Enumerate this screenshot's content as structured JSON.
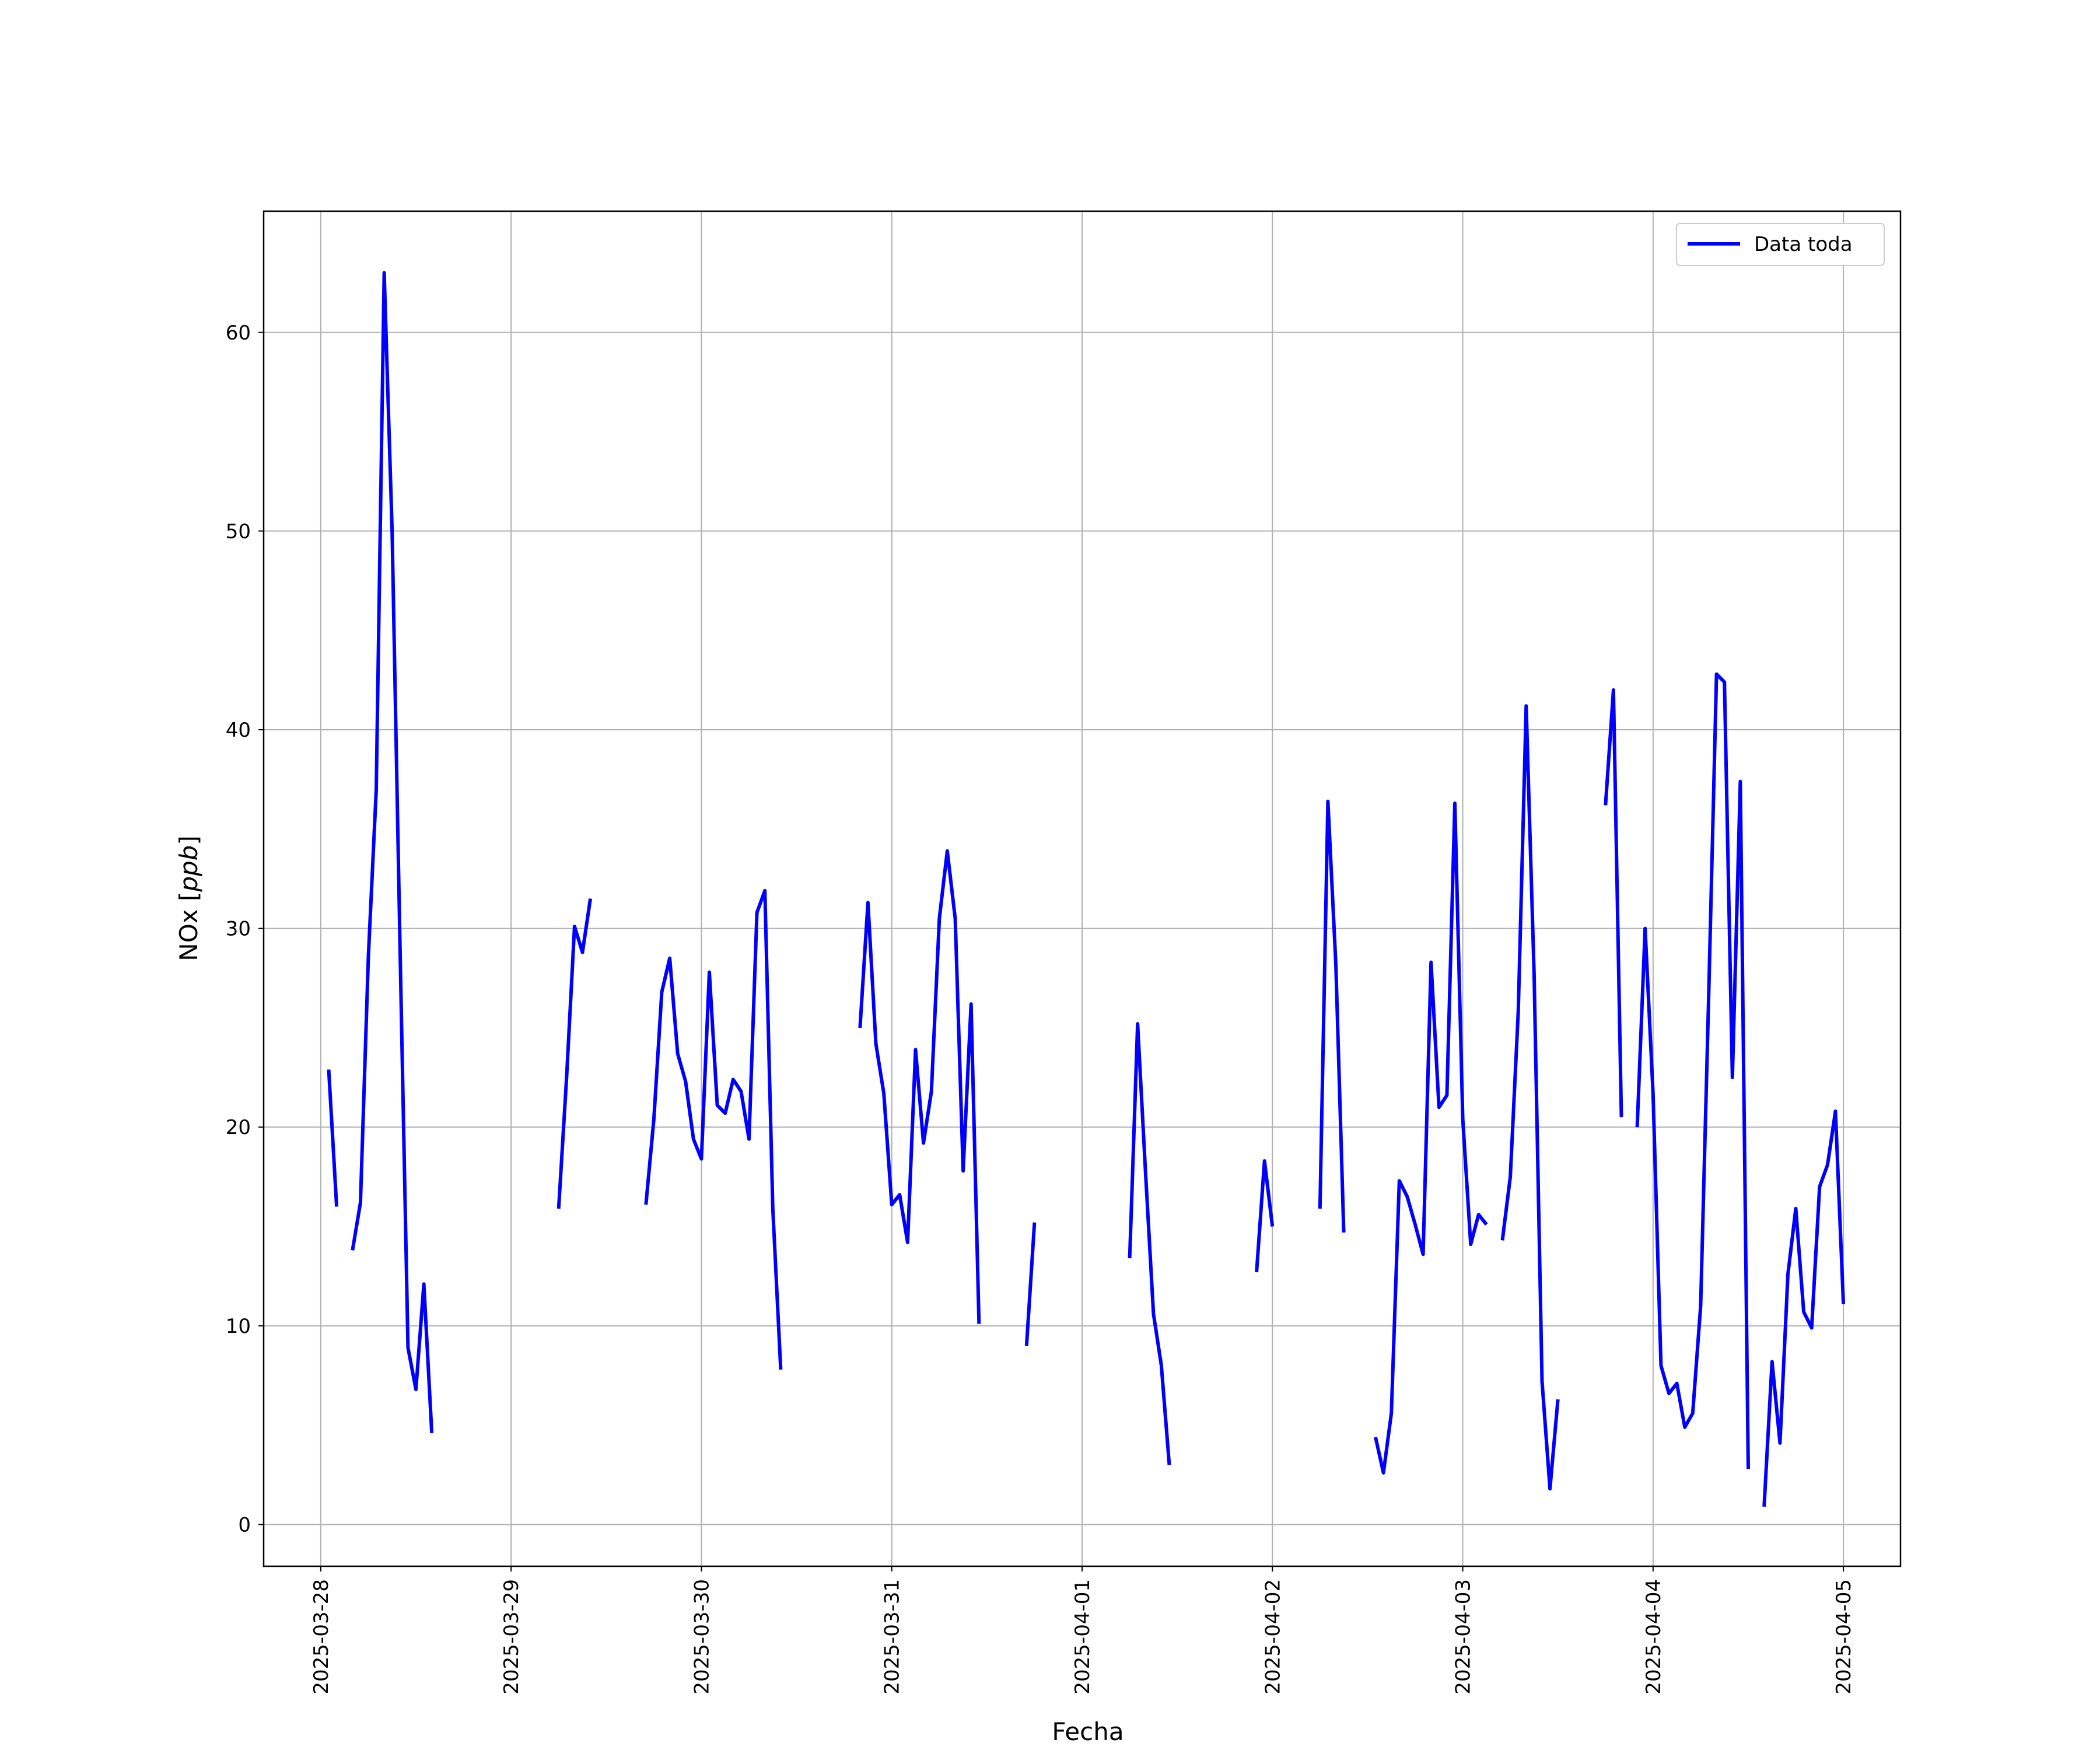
{
  "chart_data": {
    "type": "line",
    "title": "",
    "xlabel": "Fecha",
    "ylabel": "NOx [ppb]",
    "ylabel_text": "NOx ",
    "ylabel_unit": "ppb",
    "x_range": [
      "2025-03-27 16:48",
      "2025-04-05 07:12"
    ],
    "ylim": [
      -2.1,
      66.1
    ],
    "y_ticks": [
      0,
      10,
      20,
      30,
      40,
      50,
      60
    ],
    "x_ticks": [
      "2025-03-28",
      "2025-03-29",
      "2025-03-30",
      "2025-03-31",
      "2025-04-01",
      "2025-04-02",
      "2025-04-03",
      "2025-04-04",
      "2025-04-05"
    ],
    "grid": true,
    "legend_position": "top-right",
    "color": "#0000ff",
    "series": [
      {
        "name": "Data toda",
        "segments": [
          [
            [
              "2025-03-28 01:00",
              22.9
            ],
            [
              "2025-03-28 02:00",
              16.0
            ]
          ],
          [
            [
              "2025-03-28 04:00",
              13.8
            ],
            [
              "2025-03-28 05:00",
              16.2
            ],
            [
              "2025-03-28 06:00",
              28.6
            ],
            [
              "2025-03-28 07:00",
              37.0
            ],
            [
              "2025-03-28 08:00",
              63.0
            ],
            [
              "2025-03-28 09:00",
              50.0
            ],
            [
              "2025-03-28 10:00",
              29.0
            ],
            [
              "2025-03-28 11:00",
              8.9
            ],
            [
              "2025-03-28 12:00",
              6.8
            ],
            [
              "2025-03-28 13:00",
              12.1
            ],
            [
              "2025-03-28 14:00",
              4.6
            ]
          ],
          [
            [
              "2025-03-29 06:00",
              15.9
            ],
            [
              "2025-03-29 07:00",
              22.5
            ],
            [
              "2025-03-29 08:00",
              30.1
            ],
            [
              "2025-03-29 09:00",
              28.8
            ],
            [
              "2025-03-29 10:00",
              31.5
            ]
          ],
          [
            [
              "2025-03-29 17:00",
              16.1
            ],
            [
              "2025-03-29 18:00",
              20.4
            ],
            [
              "2025-03-29 19:00",
              26.8
            ],
            [
              "2025-03-29 20:00",
              28.5
            ],
            [
              "2025-03-29 21:00",
              23.7
            ],
            [
              "2025-03-29 22:00",
              22.3
            ],
            [
              "2025-03-29 23:00",
              19.4
            ],
            [
              "2025-03-30 00:00",
              18.4
            ],
            [
              "2025-03-30 01:00",
              27.8
            ],
            [
              "2025-03-30 02:00",
              21.1
            ],
            [
              "2025-03-30 03:00",
              20.7
            ],
            [
              "2025-03-30 04:00",
              22.4
            ],
            [
              "2025-03-30 05:00",
              21.8
            ],
            [
              "2025-03-30 06:00",
              19.4
            ],
            [
              "2025-03-30 07:00",
              30.8
            ],
            [
              "2025-03-30 08:00",
              31.9
            ],
            [
              "2025-03-30 09:00",
              15.9
            ],
            [
              "2025-03-30 10:00",
              7.8
            ]
          ],
          [
            [
              "2025-03-30 20:00",
              25.0
            ],
            [
              "2025-03-30 21:00",
              31.3
            ],
            [
              "2025-03-30 22:00",
              24.2
            ],
            [
              "2025-03-30 23:00",
              21.7
            ],
            [
              "2025-03-31 00:00",
              16.1
            ],
            [
              "2025-03-31 01:00",
              16.6
            ],
            [
              "2025-03-31 02:00",
              14.2
            ],
            [
              "2025-03-31 03:00",
              23.9
            ],
            [
              "2025-03-31 04:00",
              19.2
            ],
            [
              "2025-03-31 05:00",
              21.8
            ],
            [
              "2025-03-31 06:00",
              30.5
            ],
            [
              "2025-03-31 07:00",
              33.9
            ],
            [
              "2025-03-31 08:00",
              30.5
            ],
            [
              "2025-03-31 09:00",
              17.8
            ],
            [
              "2025-03-31 10:00",
              26.2
            ],
            [
              "2025-03-31 11:00",
              10.1
            ]
          ],
          [
            [
              "2025-03-31 17:00",
              9.0
            ],
            [
              "2025-03-31 18:00",
              15.2
            ]
          ],
          [
            [
              "2025-04-01 06:00",
              13.4
            ],
            [
              "2025-04-01 07:00",
              25.2
            ],
            [
              "2025-04-01 08:00",
              17.7
            ],
            [
              "2025-04-01 09:00",
              10.6
            ],
            [
              "2025-04-01 10:00",
              8.0
            ],
            [
              "2025-04-01 11:00",
              3.0
            ]
          ],
          [
            [
              "2025-04-01 22:00",
              12.7
            ],
            [
              "2025-04-01 23:00",
              18.3
            ],
            [
              "2025-04-02 00:00",
              15.0
            ]
          ],
          [
            [
              "2025-04-02 06:00",
              15.9
            ],
            [
              "2025-04-02 07:00",
              36.4
            ],
            [
              "2025-04-02 08:00",
              28.2
            ],
            [
              "2025-04-02 09:00",
              14.7
            ]
          ],
          [
            [
              "2025-04-02 13:00",
              4.4
            ],
            [
              "2025-04-02 14:00",
              2.6
            ],
            [
              "2025-04-02 15:00",
              5.6
            ],
            [
              "2025-04-02 16:00",
              17.3
            ],
            [
              "2025-04-02 17:00",
              16.5
            ],
            [
              "2025-04-02 18:00",
              15.1
            ],
            [
              "2025-04-02 19:00",
              13.6
            ],
            [
              "2025-04-02 20:00",
              28.3
            ],
            [
              "2025-04-02 21:00",
              21.0
            ],
            [
              "2025-04-02 22:00",
              21.6
            ],
            [
              "2025-04-02 23:00",
              36.3
            ],
            [
              "2025-04-03 00:00",
              20.4
            ],
            [
              "2025-04-03 01:00",
              14.1
            ],
            [
              "2025-04-03 02:00",
              15.6
            ],
            [
              "2025-04-03 03:00",
              15.1
            ]
          ],
          [
            [
              "2025-04-03 05:00",
              14.3
            ],
            [
              "2025-04-03 06:00",
              17.5
            ],
            [
              "2025-04-03 07:00",
              25.8
            ],
            [
              "2025-04-03 08:00",
              41.2
            ],
            [
              "2025-04-03 09:00",
              27.7
            ],
            [
              "2025-04-03 10:00",
              7.2
            ],
            [
              "2025-04-03 11:00",
              1.8
            ],
            [
              "2025-04-03 12:00",
              6.3
            ]
          ],
          [
            [
              "2025-04-03 18:00",
              36.2
            ],
            [
              "2025-04-03 19:00",
              42.0
            ],
            [
              "2025-04-03 20:00",
              20.5
            ]
          ],
          [
            [
              "2025-04-03 22:00",
              20.0
            ],
            [
              "2025-04-03 23:00",
              30.0
            ],
            [
              "2025-04-04 00:00",
              21.7
            ],
            [
              "2025-04-04 01:00",
              8.0
            ],
            [
              "2025-04-04 02:00",
              6.6
            ],
            [
              "2025-04-04 03:00",
              7.1
            ],
            [
              "2025-04-04 04:00",
              4.9
            ],
            [
              "2025-04-04 05:00",
              5.6
            ],
            [
              "2025-04-04 06:00",
              11.0
            ],
            [
              "2025-04-04 07:00",
              26.4
            ],
            [
              "2025-04-04 08:00",
              42.8
            ],
            [
              "2025-04-04 09:00",
              42.4
            ],
            [
              "2025-04-04 10:00",
              22.5
            ],
            [
              "2025-04-04 11:00",
              37.4
            ],
            [
              "2025-04-04 12:00",
              2.8
            ]
          ],
          [
            [
              "2025-04-04 14:00",
              0.9
            ],
            [
              "2025-04-04 15:00",
              8.2
            ],
            [
              "2025-04-04 16:00",
              4.1
            ],
            [
              "2025-04-04 17:00",
              12.6
            ],
            [
              "2025-04-04 18:00",
              15.9
            ],
            [
              "2025-04-04 19:00",
              10.7
            ],
            [
              "2025-04-04 20:00",
              9.9
            ],
            [
              "2025-04-04 21:00",
              17.0
            ],
            [
              "2025-04-04 22:00",
              18.1
            ],
            [
              "2025-04-04 23:00",
              20.8
            ],
            [
              "2025-04-05 00:00",
              11.1
            ]
          ]
        ]
      }
    ]
  }
}
